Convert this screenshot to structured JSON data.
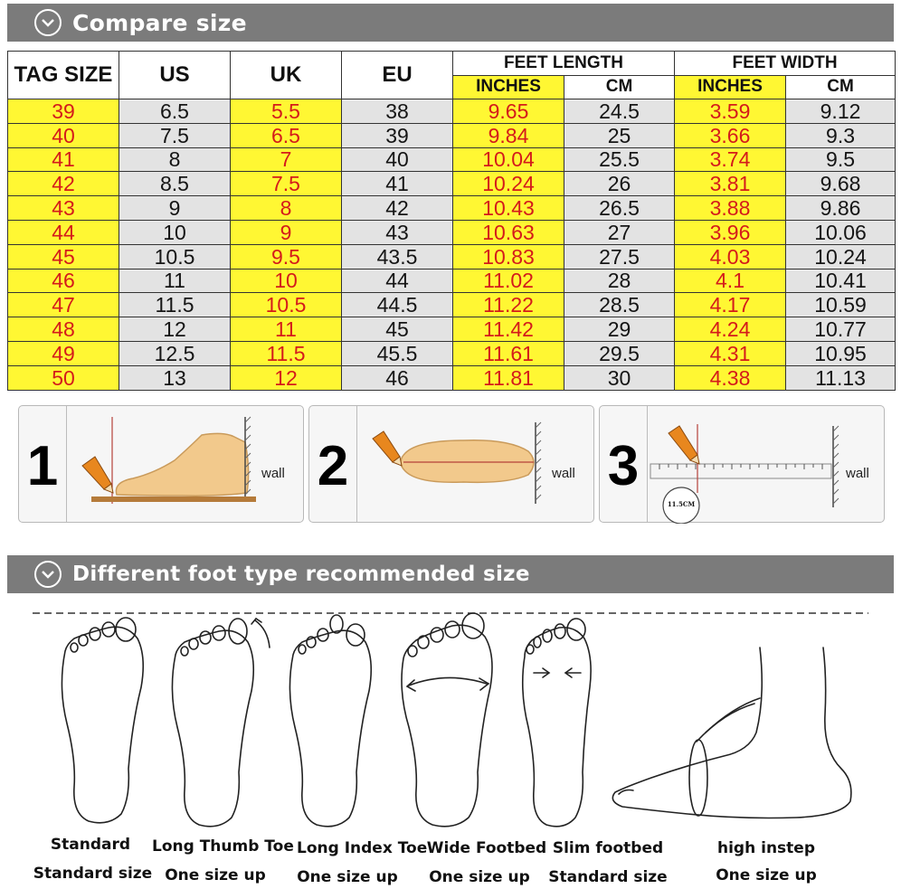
{
  "sections": {
    "compare_title": "Compare size",
    "foot_type_title": "Different foot type recommended size"
  },
  "table": {
    "headers": {
      "tag_size": "TAG SIZE",
      "us": "US",
      "uk": "UK",
      "eu": "EU",
      "feet_length": "FEET LENGTH",
      "feet_width": "FEET WIDTH",
      "inches": "INCHES",
      "cm": "CM"
    },
    "rows": [
      [
        "39",
        "6.5",
        "5.5",
        "38",
        "9.65",
        "24.5",
        "3.59",
        "9.12"
      ],
      [
        "40",
        "7.5",
        "6.5",
        "39",
        "9.84",
        "25",
        "3.66",
        "9.3"
      ],
      [
        "41",
        "8",
        "7",
        "40",
        "10.04",
        "25.5",
        "3.74",
        "9.5"
      ],
      [
        "42",
        "8.5",
        "7.5",
        "41",
        "10.24",
        "26",
        "3.81",
        "9.68"
      ],
      [
        "43",
        "9",
        "8",
        "42",
        "10.43",
        "26.5",
        "3.88",
        "9.86"
      ],
      [
        "44",
        "10",
        "9",
        "43",
        "10.63",
        "27",
        "3.96",
        "10.06"
      ],
      [
        "45",
        "10.5",
        "9.5",
        "43.5",
        "10.83",
        "27.5",
        "4.03",
        "10.24"
      ],
      [
        "46",
        "11",
        "10",
        "44",
        "11.02",
        "28",
        "4.1",
        "10.41"
      ],
      [
        "47",
        "11.5",
        "10.5",
        "44.5",
        "11.22",
        "28.5",
        "4.17",
        "10.59"
      ],
      [
        "48",
        "12",
        "11",
        "45",
        "11.42",
        "29",
        "4.24",
        "10.77"
      ],
      [
        "49",
        "12.5",
        "11.5",
        "45.5",
        "11.61",
        "29.5",
        "4.31",
        "10.95"
      ],
      [
        "50",
        "13",
        "12",
        "46",
        "11.81",
        "30",
        "4.38",
        "11.13"
      ]
    ]
  },
  "steps": [
    {
      "number": "1",
      "wall_label": "wall"
    },
    {
      "number": "2",
      "wall_label": "wall"
    },
    {
      "number": "3",
      "wall_label": "wall",
      "ruler_label": "11.5CM"
    }
  ],
  "foot_types": [
    {
      "name": "Standard",
      "recommendation": "Standard size"
    },
    {
      "name": "Long Thumb Toe",
      "recommendation": "One size up"
    },
    {
      "name": "Long Index Toe",
      "recommendation": "One size up"
    },
    {
      "name": "Wide Footbed",
      "recommendation": "One size up"
    },
    {
      "name": "Slim footbed",
      "recommendation": "Standard size"
    },
    {
      "name": "high instep",
      "recommendation": "One size up"
    }
  ],
  "colors": {
    "banner": "#7b7b7b",
    "highlight_yellow": "#fff733",
    "highlight_text_red": "#d41b1b",
    "gray_cell": "#e3e3e3",
    "foot_skin": "#f2c98c",
    "pencil_orange": "#e8871e"
  },
  "icons": {
    "section_marker": "chevron-down-circle-icon"
  }
}
